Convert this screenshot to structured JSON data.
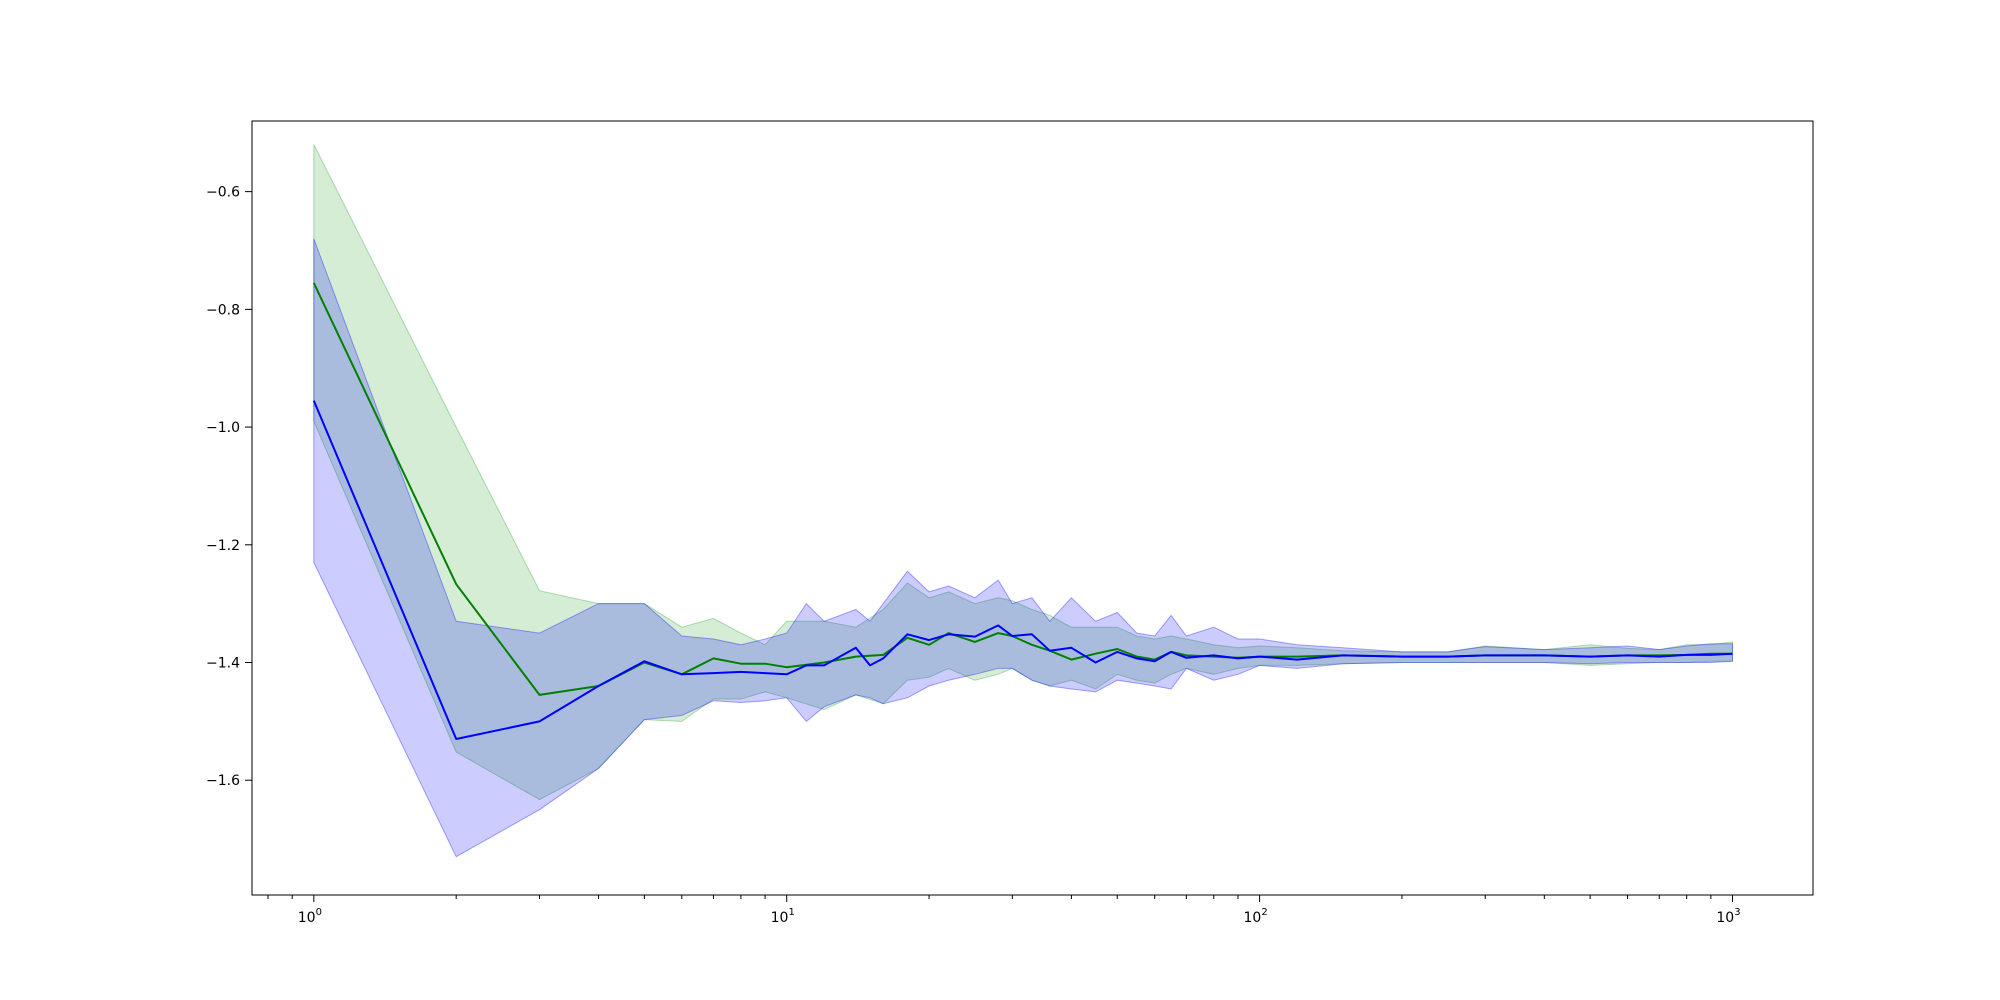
{
  "chart_data": {
    "type": "line",
    "title": "",
    "xlabel": "",
    "ylabel": "",
    "xscale": "log",
    "xlim": [
      0.74,
      1480
    ],
    "ylim": [
      -1.795,
      -0.48
    ],
    "grid": false,
    "legend": "none",
    "x_ticks": [
      {
        "value": 1,
        "base": "10",
        "exp": "0"
      },
      {
        "value": 10,
        "base": "10",
        "exp": "1"
      },
      {
        "value": 100,
        "base": "10",
        "exp": "2"
      },
      {
        "value": 1000,
        "base": "10",
        "exp": "3"
      }
    ],
    "y_ticks": [
      {
        "value": -0.6,
        "label": "−0.6"
      },
      {
        "value": -0.8,
        "label": "−0.8"
      },
      {
        "value": -1.0,
        "label": "−1.0"
      },
      {
        "value": -1.2,
        "label": "−1.2"
      },
      {
        "value": -1.4,
        "label": "−1.4"
      },
      {
        "value": -1.6,
        "label": "−1.6"
      }
    ],
    "series": [
      {
        "color": "#008000",
        "band_color": "#2ca02c",
        "x": [
          1,
          2,
          3,
          4,
          5,
          6,
          7,
          8,
          9,
          10,
          12,
          14,
          16,
          18,
          20,
          22,
          25,
          28,
          30,
          33,
          36,
          40,
          45,
          50,
          55,
          60,
          65,
          70,
          80,
          90,
          100,
          120,
          150,
          200,
          250,
          300,
          400,
          500,
          600,
          700,
          800,
          900,
          1000
        ],
        "y": [
          -0.755,
          -1.267,
          -1.455,
          -1.44,
          -1.4,
          -1.42,
          -1.393,
          -1.402,
          -1.402,
          -1.408,
          -1.4,
          -1.39,
          -1.387,
          -1.358,
          -1.37,
          -1.35,
          -1.365,
          -1.35,
          -1.355,
          -1.37,
          -1.38,
          -1.395,
          -1.385,
          -1.377,
          -1.39,
          -1.395,
          -1.382,
          -1.388,
          -1.39,
          -1.392,
          -1.39,
          -1.39,
          -1.388,
          -1.39,
          -1.39,
          -1.388,
          -1.388,
          -1.39,
          -1.388,
          -1.388,
          -1.387,
          -1.385,
          -1.385
        ],
        "upper": [
          -0.52,
          -1.0,
          -1.278,
          -1.3,
          -1.3,
          -1.34,
          -1.325,
          -1.35,
          -1.37,
          -1.33,
          -1.33,
          -1.34,
          -1.31,
          -1.265,
          -1.29,
          -1.28,
          -1.3,
          -1.29,
          -1.295,
          -1.31,
          -1.32,
          -1.34,
          -1.34,
          -1.34,
          -1.355,
          -1.36,
          -1.355,
          -1.36,
          -1.37,
          -1.375,
          -1.372,
          -1.375,
          -1.38,
          -1.382,
          -1.382,
          -1.372,
          -1.378,
          -1.37,
          -1.376,
          -1.378,
          -1.37,
          -1.37,
          -1.365
        ],
        "lower": [
          -0.99,
          -1.552,
          -1.633,
          -1.58,
          -1.497,
          -1.5,
          -1.462,
          -1.462,
          -1.45,
          -1.46,
          -1.48,
          -1.455,
          -1.47,
          -1.43,
          -1.425,
          -1.41,
          -1.43,
          -1.42,
          -1.41,
          -1.43,
          -1.44,
          -1.43,
          -1.445,
          -1.42,
          -1.43,
          -1.435,
          -1.42,
          -1.41,
          -1.42,
          -1.41,
          -1.405,
          -1.405,
          -1.402,
          -1.4,
          -1.4,
          -1.4,
          -1.4,
          -1.405,
          -1.402,
          -1.4,
          -1.4,
          -1.398,
          -1.398
        ]
      },
      {
        "color": "#0000ff",
        "band_color": "#0000ff",
        "x": [
          1,
          2,
          3,
          4,
          5,
          6,
          7,
          8,
          9,
          10,
          11,
          12,
          14,
          15,
          16,
          18,
          20,
          22,
          25,
          28,
          30,
          33,
          36,
          40,
          45,
          50,
          55,
          60,
          65,
          70,
          80,
          90,
          100,
          120,
          150,
          200,
          250,
          300,
          400,
          500,
          600,
          700,
          800,
          900,
          1000
        ],
        "y": [
          -0.955,
          -1.53,
          -1.5,
          -1.44,
          -1.398,
          -1.42,
          -1.418,
          -1.416,
          -1.418,
          -1.42,
          -1.405,
          -1.405,
          -1.375,
          -1.405,
          -1.393,
          -1.352,
          -1.362,
          -1.352,
          -1.356,
          -1.337,
          -1.355,
          -1.352,
          -1.38,
          -1.375,
          -1.4,
          -1.382,
          -1.393,
          -1.398,
          -1.382,
          -1.392,
          -1.388,
          -1.393,
          -1.39,
          -1.395,
          -1.388,
          -1.39,
          -1.39,
          -1.388,
          -1.388,
          -1.39,
          -1.388,
          -1.39,
          -1.387,
          -1.387,
          -1.385
        ],
        "upper": [
          -0.68,
          -1.33,
          -1.35,
          -1.3,
          -1.3,
          -1.355,
          -1.36,
          -1.37,
          -1.36,
          -1.35,
          -1.3,
          -1.33,
          -1.31,
          -1.33,
          -1.3,
          -1.245,
          -1.28,
          -1.27,
          -1.29,
          -1.26,
          -1.3,
          -1.29,
          -1.33,
          -1.29,
          -1.33,
          -1.315,
          -1.35,
          -1.355,
          -1.32,
          -1.355,
          -1.34,
          -1.36,
          -1.36,
          -1.37,
          -1.375,
          -1.382,
          -1.382,
          -1.373,
          -1.378,
          -1.375,
          -1.372,
          -1.378,
          -1.372,
          -1.368,
          -1.368
        ],
        "lower": [
          -1.23,
          -1.73,
          -1.65,
          -1.58,
          -1.497,
          -1.49,
          -1.465,
          -1.468,
          -1.465,
          -1.46,
          -1.5,
          -1.475,
          -1.455,
          -1.46,
          -1.47,
          -1.46,
          -1.44,
          -1.43,
          -1.42,
          -1.41,
          -1.41,
          -1.43,
          -1.44,
          -1.445,
          -1.45,
          -1.43,
          -1.435,
          -1.44,
          -1.445,
          -1.41,
          -1.43,
          -1.42,
          -1.405,
          -1.41,
          -1.402,
          -1.4,
          -1.4,
          -1.4,
          -1.4,
          -1.402,
          -1.4,
          -1.4,
          -1.4,
          -1.4,
          -1.398
        ]
      }
    ]
  }
}
